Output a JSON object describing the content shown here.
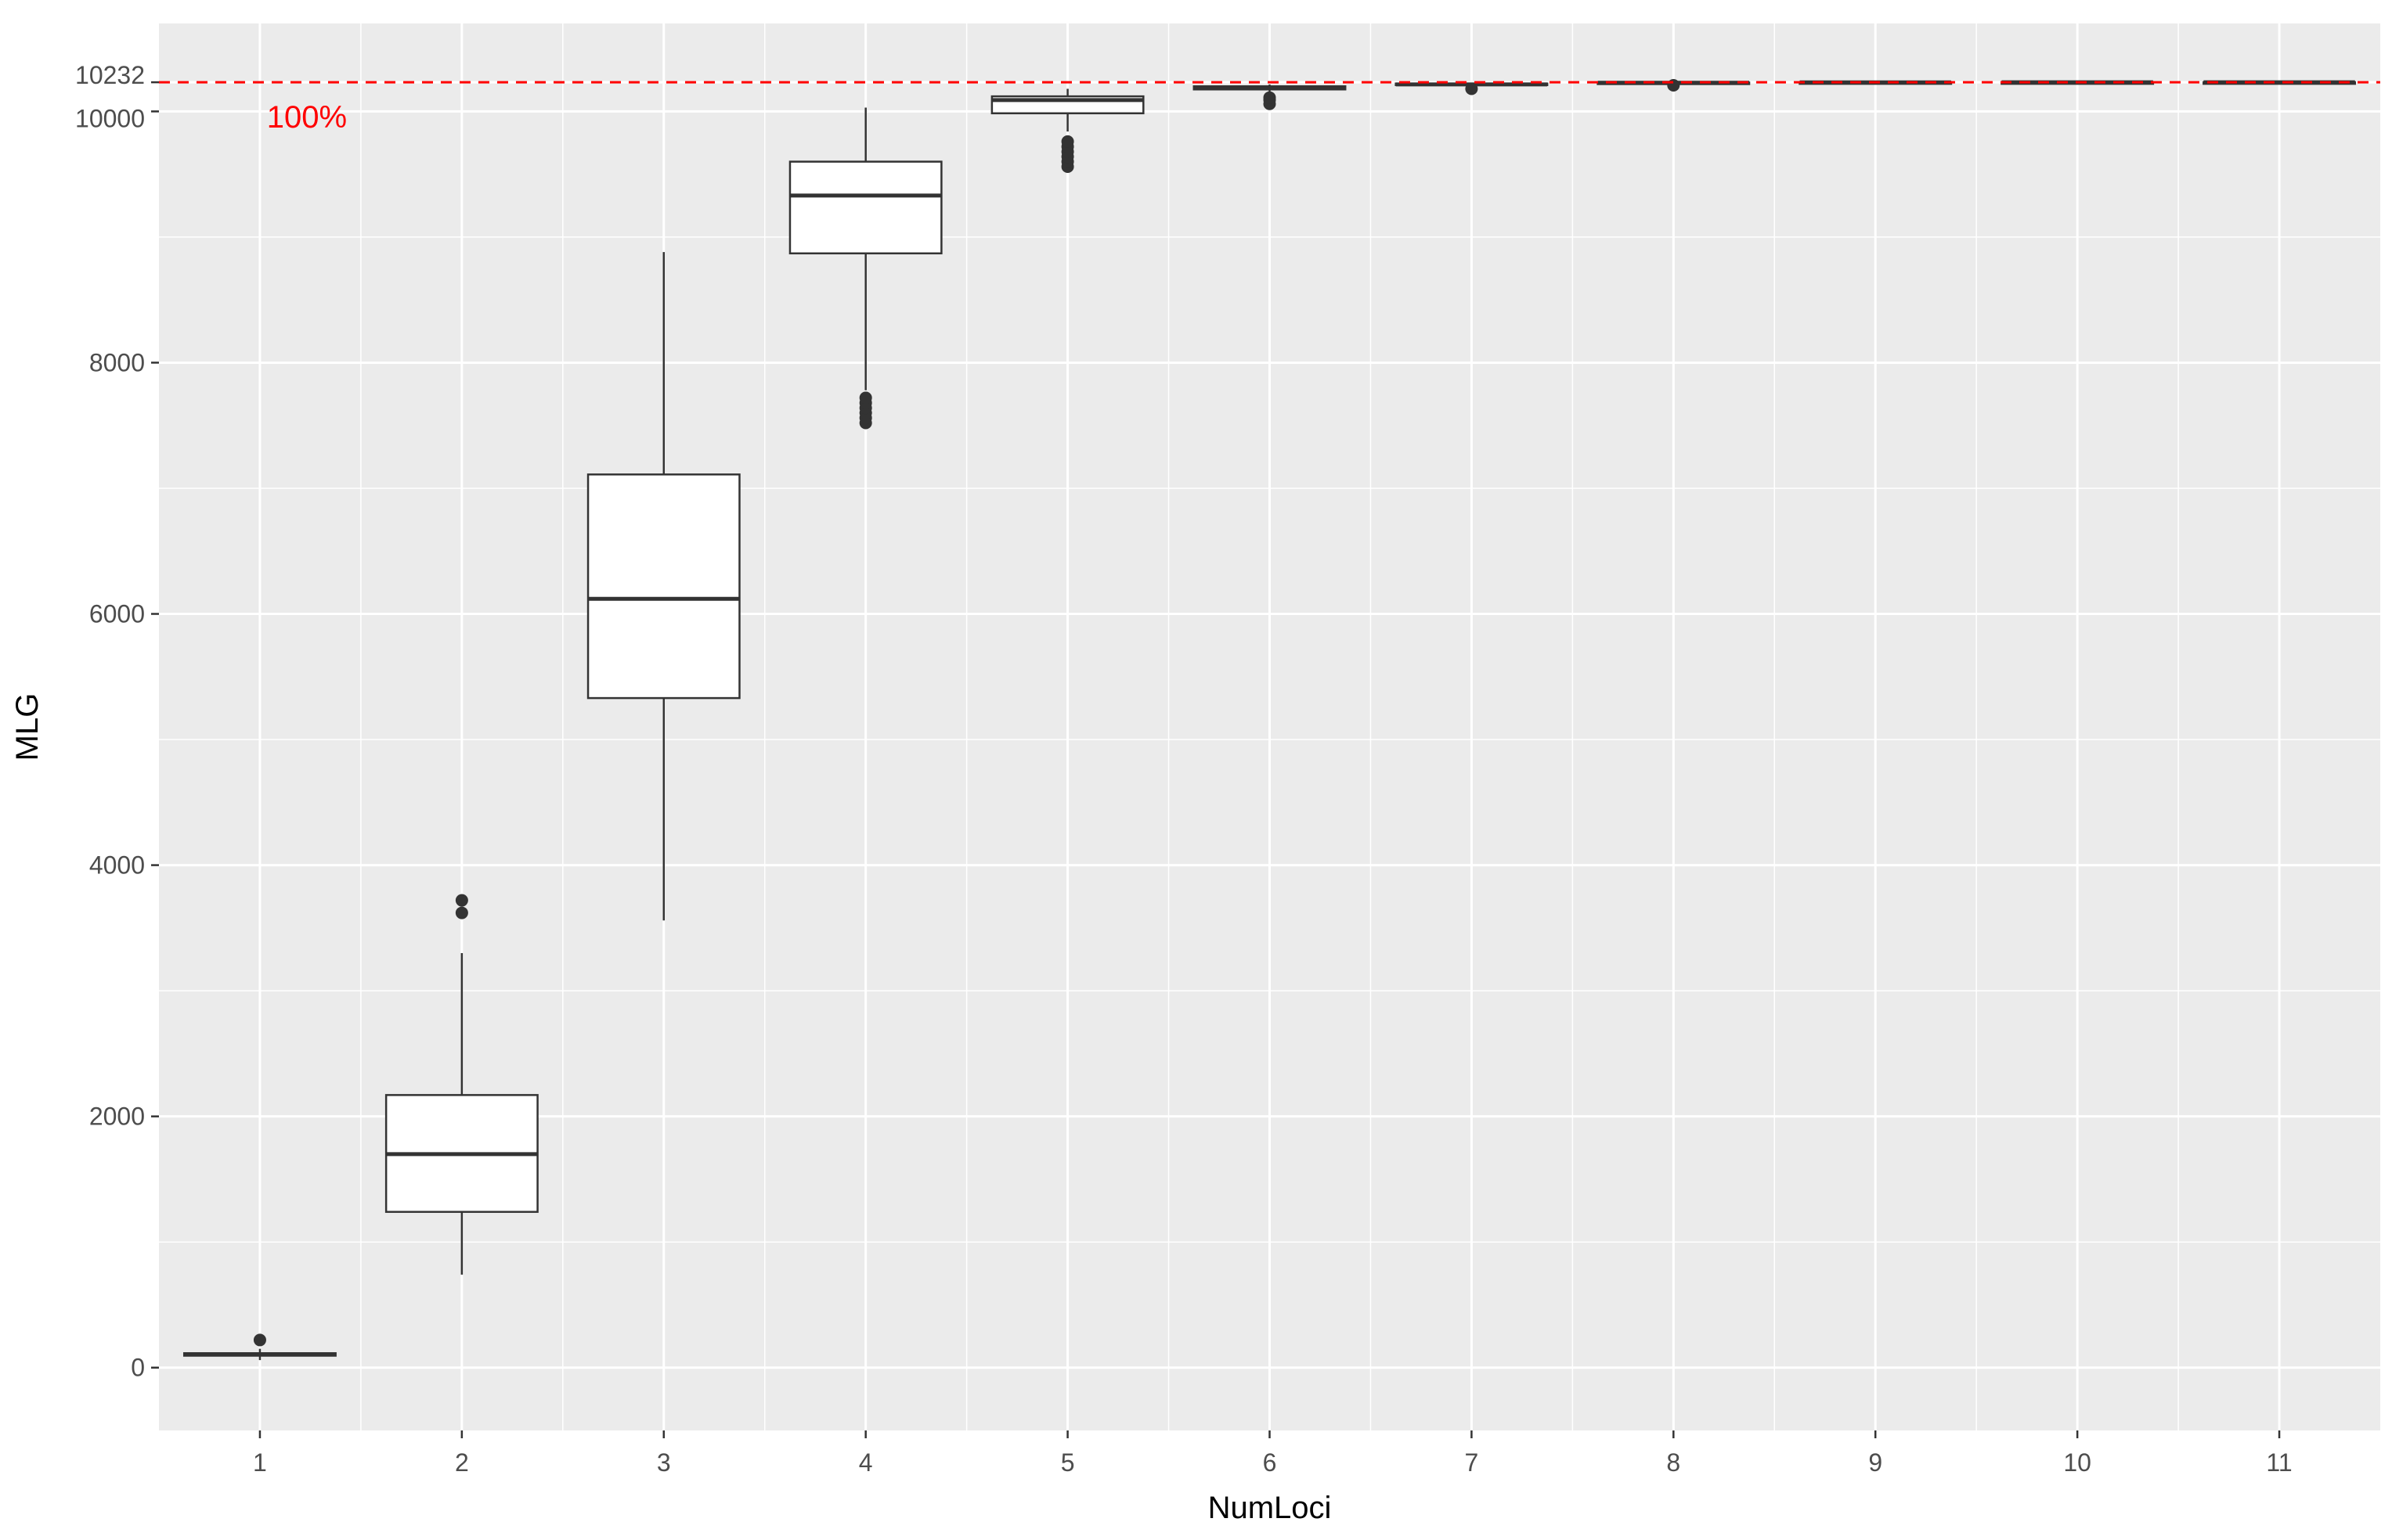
{
  "chart_data": {
    "type": "box",
    "xlabel": "NumLoci",
    "ylabel": "MLG",
    "categories": [
      "1",
      "2",
      "3",
      "4",
      "5",
      "6",
      "7",
      "8",
      "9",
      "10",
      "11"
    ],
    "ylim": [
      -500,
      10700
    ],
    "yticks": [
      0,
      2000,
      4000,
      6000,
      8000,
      10000,
      10232
    ],
    "ytick_labels": [
      "0",
      "2000",
      "4000",
      "6000",
      "8000",
      "10000",
      "10232"
    ],
    "grid": true,
    "reference_line": {
      "value": 10232,
      "label": "100%",
      "color": "#ff0000",
      "style": "dashed"
    },
    "boxes": [
      {
        "category": "1",
        "min": 60,
        "q1": 95,
        "median": 105,
        "q3": 115,
        "max": 150,
        "outliers": [
          220
        ]
      },
      {
        "category": "2",
        "min": 740,
        "q1": 1240,
        "median": 1700,
        "q3": 2170,
        "max": 3300,
        "outliers": [
          3620,
          3720
        ]
      },
      {
        "category": "3",
        "min": 3560,
        "q1": 5330,
        "median": 6120,
        "q3": 7110,
        "max": 8880,
        "outliers": []
      },
      {
        "category": "4",
        "min": 7780,
        "q1": 8870,
        "median": 9330,
        "q3": 9600,
        "max": 10030,
        "outliers": [
          7520,
          7560,
          7600,
          7640,
          7680,
          7720
        ]
      },
      {
        "category": "5",
        "min": 9840,
        "q1": 9985,
        "median": 10090,
        "q3": 10120,
        "max": 10180,
        "outliers": [
          9560,
          9600,
          9640,
          9680,
          9720,
          9760
        ]
      },
      {
        "category": "6",
        "min": 10130,
        "q1": 10175,
        "median": 10185,
        "q3": 10200,
        "max": 10215,
        "outliers": [
          10060,
          10090,
          10110
        ]
      },
      {
        "category": "7",
        "min": 10200,
        "q1": 10212,
        "median": 10215,
        "q3": 10222,
        "max": 10228,
        "outliers": [
          10180
        ]
      },
      {
        "category": "8",
        "min": 10222,
        "q1": 10226,
        "median": 10228,
        "q3": 10230,
        "max": 10232,
        "outliers": [
          10208
        ]
      },
      {
        "category": "9",
        "min": 10228,
        "q1": 10230,
        "median": 10231,
        "q3": 10232,
        "max": 10232,
        "outliers": []
      },
      {
        "category": "10",
        "min": 10230,
        "q1": 10231,
        "median": 10232,
        "q3": 10232,
        "max": 10232,
        "outliers": []
      },
      {
        "category": "11",
        "min": 10231,
        "q1": 10232,
        "median": 10232,
        "q3": 10232,
        "max": 10232,
        "outliers": []
      }
    ],
    "colors": {
      "panel_background": "#ebebeb",
      "grid": "#ffffff",
      "box_fill": "#ffffff",
      "box_stroke": "#333333",
      "reference": "#ff0000"
    }
  }
}
